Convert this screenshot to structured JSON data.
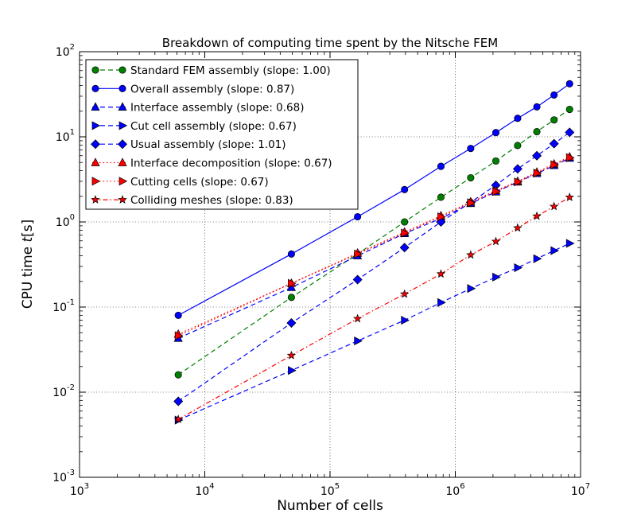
{
  "chart_data": {
    "type": "line",
    "title": "Breakdown of computing time spent by the Nitsche FEM",
    "xlabel": "Number of cells",
    "ylabel_prefix": "CPU time ",
    "ylabel_var": "t",
    "ylabel_unit": "[s]",
    "xscale": "log",
    "yscale": "log",
    "xlim": [
      1000,
      10000000
    ],
    "ylim": [
      0.001,
      100
    ],
    "grid": true,
    "legend_position": "upper-left",
    "x_ticks": [
      {
        "base": "10",
        "exp": "3",
        "value": 1000
      },
      {
        "base": "10",
        "exp": "4",
        "value": 10000
      },
      {
        "base": "10",
        "exp": "5",
        "value": 100000
      },
      {
        "base": "10",
        "exp": "6",
        "value": 1000000
      },
      {
        "base": "10",
        "exp": "7",
        "value": 10000000
      }
    ],
    "y_ticks": [
      {
        "base": "10",
        "exp": "-3",
        "value": 0.001
      },
      {
        "base": "10",
        "exp": "-2",
        "value": 0.01
      },
      {
        "base": "10",
        "exp": "-1",
        "value": 0.1
      },
      {
        "base": "10",
        "exp": "0",
        "value": 1
      },
      {
        "base": "10",
        "exp": "1",
        "value": 10
      },
      {
        "base": "10",
        "exp": "2",
        "value": 100
      }
    ],
    "x": [
      6144,
      49152,
      165888,
      393216,
      768000,
      1327104,
      2107392,
      3145728,
      4478976,
      6144000,
      8177664
    ],
    "series": [
      {
        "name": "Standard FEM assembly (slope: 1.00)",
        "color": "#008000",
        "dash": "6,4",
        "marker": "circle",
        "values": [
          0.016,
          0.13,
          0.42,
          1.0,
          1.95,
          3.3,
          5.2,
          7.9,
          11.5,
          15.8,
          21
        ]
      },
      {
        "name": "Overall assembly (slope: 0.87)",
        "color": "#0000ff",
        "dash": "",
        "marker": "circle",
        "values": [
          0.08,
          0.42,
          1.15,
          2.4,
          4.5,
          7.3,
          11.2,
          16.5,
          22.5,
          31,
          42
        ]
      },
      {
        "name": "Interface assembly (slope: 0.68)",
        "color": "#0000ff",
        "dash": "6,4",
        "marker": "triangle-up",
        "values": [
          0.043,
          0.17,
          0.4,
          0.73,
          1.1,
          1.65,
          2.25,
          2.95,
          3.7,
          4.6,
          5.6
        ]
      },
      {
        "name": "Cut cell assembly (slope: 0.67)",
        "color": "#0000ff",
        "dash": "6,4",
        "marker": "triangle-right",
        "values": [
          0.0047,
          0.018,
          0.04,
          0.07,
          0.113,
          0.165,
          0.225,
          0.29,
          0.37,
          0.46,
          0.56
        ]
      },
      {
        "name": "Usual assembly (slope: 1.01)",
        "color": "#0000ff",
        "dash": "6,4",
        "marker": "diamond",
        "values": [
          0.0078,
          0.065,
          0.21,
          0.5,
          1.0,
          1.7,
          2.7,
          4.2,
          6.0,
          8.3,
          11.3
        ]
      },
      {
        "name": "Interface decomposition (slope: 0.67)",
        "color": "#ff0000",
        "dash": "1.5,3",
        "marker": "triangle-up",
        "values": [
          0.048,
          0.19,
          0.43,
          0.76,
          1.18,
          1.72,
          2.33,
          3.0,
          3.85,
          4.8,
          5.8
        ]
      },
      {
        "name": "Cutting cells (slope: 0.67)",
        "color": "#ff0000",
        "dash": "1.5,3",
        "marker": "triangle-right",
        "values": [
          0.046,
          0.19,
          0.42,
          0.74,
          1.15,
          1.68,
          2.28,
          2.95,
          3.75,
          4.7,
          5.7
        ]
      },
      {
        "name": "Colliding meshes (slope: 0.83)",
        "color": "#ff0000",
        "dash": "6,3,1.5,3",
        "marker": "star",
        "values": [
          0.0048,
          0.027,
          0.073,
          0.142,
          0.245,
          0.41,
          0.59,
          0.85,
          1.17,
          1.52,
          1.95
        ]
      }
    ]
  }
}
